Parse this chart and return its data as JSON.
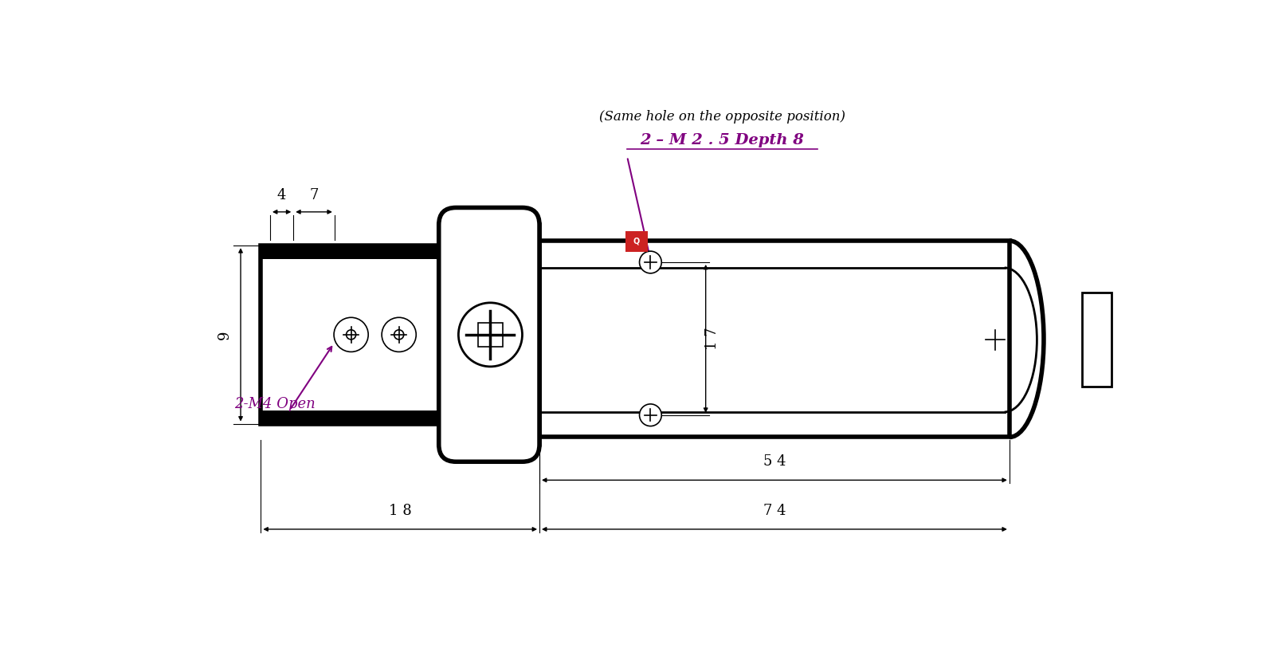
{
  "bg_color": "#ffffff",
  "lc": "#000000",
  "purple": "#800080",
  "note_text": "(Same hole on the opposite position)",
  "annot_text": "2 – M 2 . 5 Depth 8",
  "m4_text": "2-M4 Open",
  "d4": "4",
  "d7": "7",
  "d9": "9",
  "d17": "1 7",
  "d54": "5 4",
  "d18": "1 8",
  "d74": "7 4",
  "lw_thick": 4.0,
  "lw_mid": 2.0,
  "lw_thin": 1.2,
  "lw_dim": 1.0,
  "fs_dim": 13,
  "fs_annot": 13,
  "fs_note": 12
}
